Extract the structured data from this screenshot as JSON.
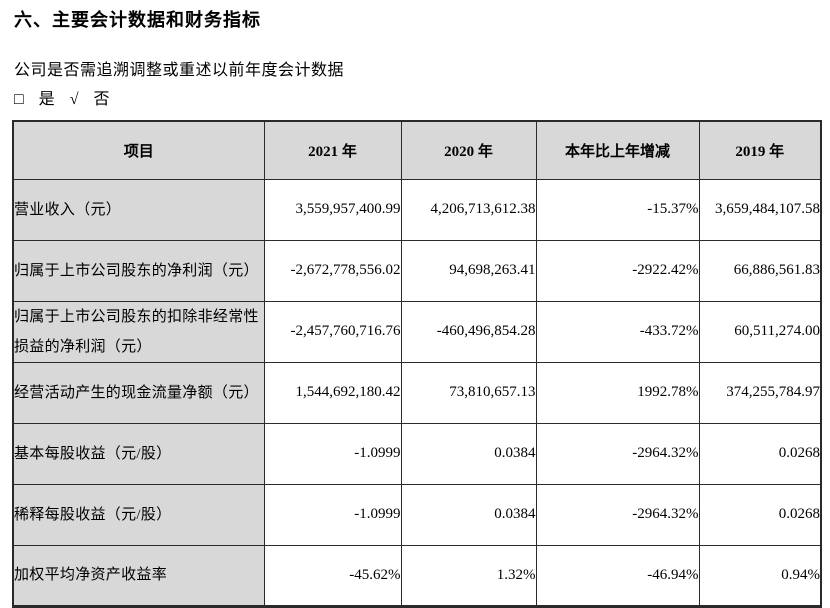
{
  "page": {
    "section_title": "六、主要会计数据和财务指标",
    "question": "公司是否需追溯调整或重述以前年度会计数据",
    "checkbox": {
      "unchecked_symbol": "□",
      "yes_label": "是",
      "check_symbol": "√",
      "no_label": "否"
    }
  },
  "table": {
    "headers": [
      "项目",
      "2021 年",
      "2020 年",
      "本年比上年增减",
      "2019 年"
    ],
    "rows": [
      {
        "label": "营业收入（元）",
        "values": [
          "3,559,957,400.99",
          "4,206,713,612.38",
          "-15.37%",
          "3,659,484,107.58"
        ]
      },
      {
        "label": "归属于上市公司股东的净利润（元）",
        "values": [
          "-2,672,778,556.02",
          "94,698,263.41",
          "-2922.42%",
          "66,886,561.83"
        ]
      },
      {
        "label": "归属于上市公司股东的扣除非经常性损益的净利润（元）",
        "values": [
          "-2,457,760,716.76",
          "-460,496,854.28",
          "-433.72%",
          "60,511,274.00"
        ]
      },
      {
        "label": "经营活动产生的现金流量净额（元）",
        "values": [
          "1,544,692,180.42",
          "73,810,657.13",
          "1992.78%",
          "374,255,784.97"
        ]
      },
      {
        "label": "基本每股收益（元/股）",
        "values": [
          "-1.0999",
          "0.0384",
          "-2964.32%",
          "0.0268"
        ]
      },
      {
        "label": "稀释每股收益（元/股）",
        "values": [
          "-1.0999",
          "0.0384",
          "-2964.32%",
          "0.0268"
        ]
      },
      {
        "label": "加权平均净资产收益率",
        "values": [
          "-45.62%",
          "1.32%",
          "-46.94%",
          "0.94%"
        ]
      }
    ]
  },
  "colors": {
    "shade": "#d8d8d8",
    "border": "#2a2a2a",
    "text": "#000000"
  }
}
